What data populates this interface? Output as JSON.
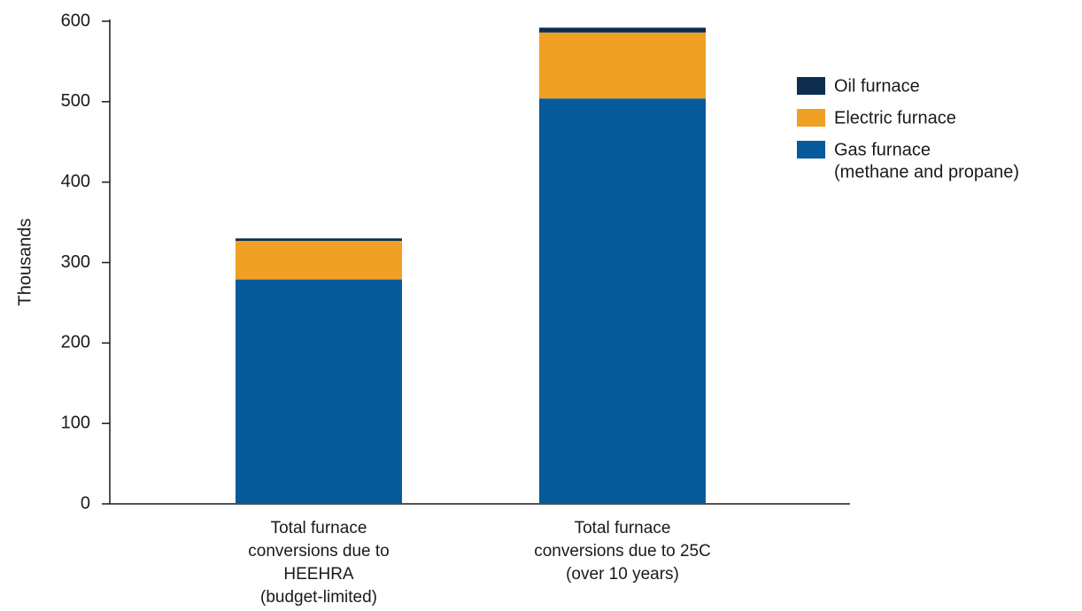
{
  "chart_data": {
    "type": "bar",
    "stacked": true,
    "title": "",
    "xlabel": "",
    "ylabel": "Thousands",
    "ylim": [
      0,
      600
    ],
    "yticks": [
      0,
      100,
      200,
      300,
      400,
      500,
      600
    ],
    "grid": false,
    "legend_position": "right",
    "categories": [
      [
        "Total furnace",
        "conversions due to",
        "HEEHRA",
        "(budget-limited)"
      ],
      [
        "Total furnace",
        "conversions due to 25C",
        "(over 10 years)"
      ]
    ],
    "series": [
      {
        "name": "Gas furnace (methane and propane)",
        "legend_lines": [
          "Gas furnace",
          "(methane and propane)"
        ],
        "color": "#075a9a",
        "values": [
          279,
          504
        ]
      },
      {
        "name": "Electric furnace",
        "legend_lines": [
          "Electric furnace"
        ],
        "color": "#f0a024",
        "values": [
          48,
          82
        ]
      },
      {
        "name": "Oil furnace",
        "legend_lines": [
          "Oil furnace"
        ],
        "color": "#0c2d4e",
        "values": [
          3,
          6
        ]
      }
    ],
    "legend_order": [
      "Oil furnace",
      "Electric furnace",
      "Gas furnace (methane and propane)"
    ]
  }
}
